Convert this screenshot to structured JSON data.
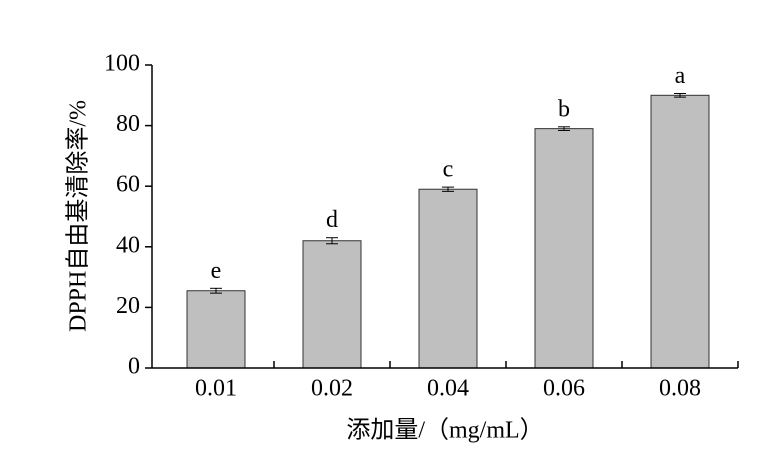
{
  "chart_data": {
    "type": "bar",
    "y_label": "DPPH自由基清除率/%",
    "x_label": "添加量/（mg/mL）",
    "categories": [
      "0.01",
      "0.02",
      "0.04",
      "0.06",
      "0.08"
    ],
    "values": [
      25.5,
      42,
      59,
      79,
      90
    ],
    "errors": [
      0.8,
      1,
      0.7,
      0.6,
      0.6
    ],
    "labels": [
      "e",
      "d",
      "c",
      "b",
      "a"
    ],
    "color": "#bfbfbf",
    "ylim": [
      0,
      100
    ],
    "yticks": [
      0,
      20,
      40,
      60,
      80,
      100
    ],
    "grid": false
  }
}
